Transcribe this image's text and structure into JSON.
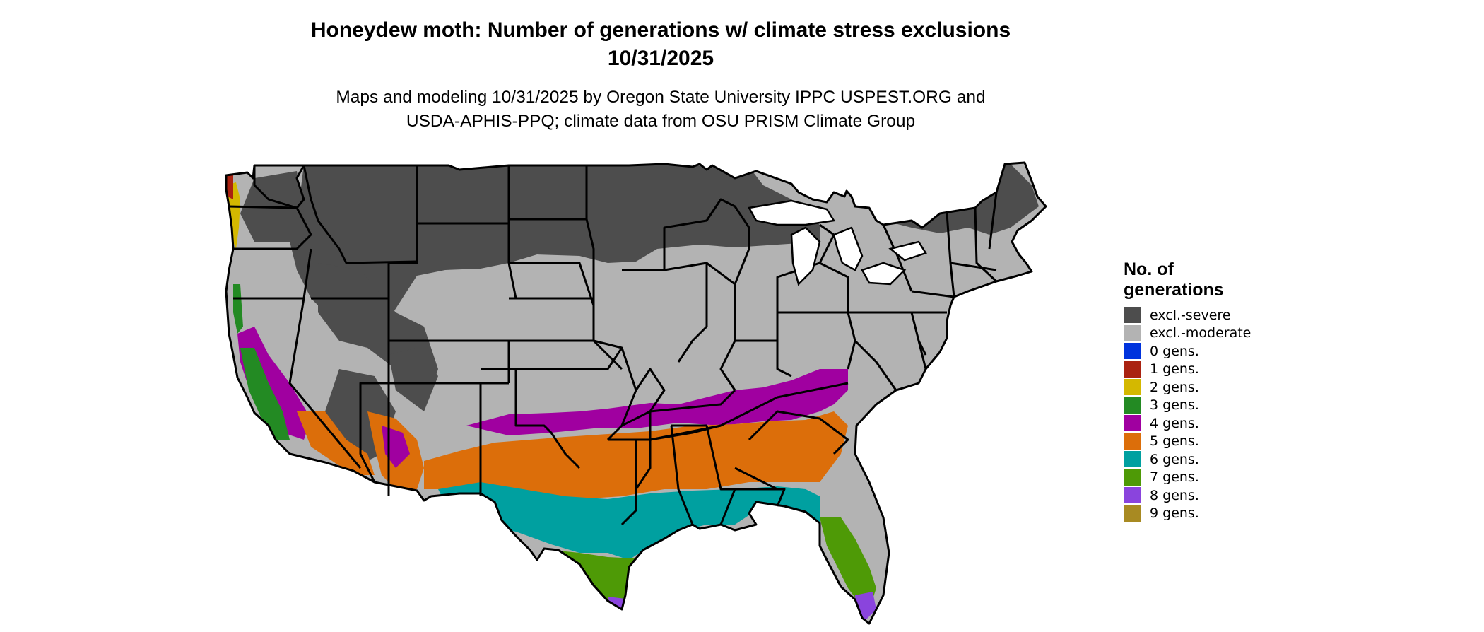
{
  "title_line1": "Honeydew moth: Number of generations w/ climate stress exclusions",
  "title_line2": "10/31/2025",
  "subtitle_line1": "Maps and modeling 10/31/2025 by Oregon State University IPPC USPEST.ORG and",
  "subtitle_line2": "USDA-APHIS-PPQ; climate data from OSU PRISM Climate Group",
  "legend": {
    "title_line1": "No. of",
    "title_line2": "generations",
    "items": [
      {
        "label": "excl.-severe",
        "color": "#4d4d4d"
      },
      {
        "label": "excl.-moderate",
        "color": "#b3b3b3"
      },
      {
        "label": "0 gens.",
        "color": "#0033dd"
      },
      {
        "label": "1 gens.",
        "color": "#aa2211"
      },
      {
        "label": "2 gens.",
        "color": "#d4b800"
      },
      {
        "label": "3 gens.",
        "color": "#238a23"
      },
      {
        "label": "4 gens.",
        "color": "#a000a0"
      },
      {
        "label": "5 gens.",
        "color": "#dc6e0a"
      },
      {
        "label": "6 gens.",
        "color": "#00a0a0"
      },
      {
        "label": "7 gens.",
        "color": "#4e9a06"
      },
      {
        "label": "8 gens.",
        "color": "#8a44dd"
      },
      {
        "label": "9 gens.",
        "color": "#a88a22"
      }
    ]
  },
  "colors": {
    "state_border": "#000000",
    "water": "#ffffff"
  }
}
